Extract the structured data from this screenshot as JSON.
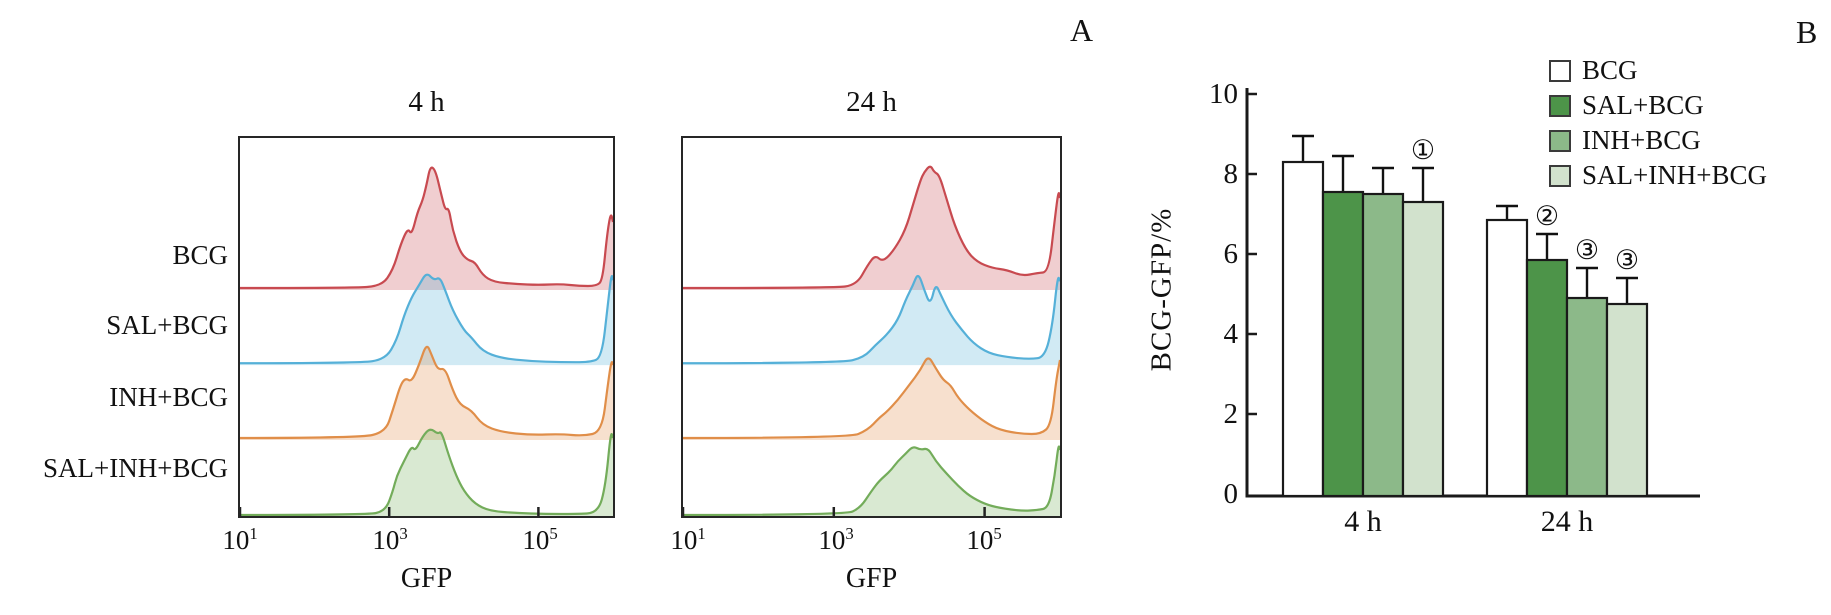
{
  "panel_labels": {
    "a": "A",
    "b": "B"
  },
  "flow": {
    "xlabel": "GFP",
    "xticks": [
      {
        "mant": "10",
        "exp": "1"
      },
      {
        "mant": "10",
        "exp": "3"
      },
      {
        "mant": "10",
        "exp": "5"
      }
    ],
    "row_labels": [
      "BCG",
      "SAL+BCG",
      "INH+BCG",
      "SAL+INH+BCG"
    ]
  },
  "chart_data": [
    {
      "type": "area",
      "title": "4 h",
      "xlabel": "GFP",
      "x_scale": "log10",
      "x_range_log10": [
        1,
        6
      ],
      "x_tick_values": [
        10,
        1000,
        100000
      ],
      "note": "stacked flow-cytometry ridgeline; points are [log10(GFP), relative height px per 75px row]",
      "series": [
        {
          "name": "BCG",
          "stroke": "#c84a50",
          "points": [
            [
              1,
              2
            ],
            [
              2.5,
              2
            ],
            [
              2.9,
              4
            ],
            [
              3.05,
              20
            ],
            [
              3.15,
              45
            ],
            [
              3.25,
              62
            ],
            [
              3.3,
              55
            ],
            [
              3.38,
              78
            ],
            [
              3.45,
              90
            ],
            [
              3.5,
              105
            ],
            [
              3.55,
              124
            ],
            [
              3.62,
              120
            ],
            [
              3.7,
              95
            ],
            [
              3.75,
              80
            ],
            [
              3.8,
              82
            ],
            [
              3.85,
              60
            ],
            [
              3.95,
              38
            ],
            [
              4.05,
              30
            ],
            [
              4.15,
              28
            ],
            [
              4.25,
              15
            ],
            [
              4.4,
              8
            ],
            [
              4.7,
              6
            ],
            [
              5.0,
              5
            ],
            [
              5.3,
              6
            ],
            [
              5.55,
              4
            ],
            [
              5.78,
              4
            ],
            [
              5.86,
              10
            ],
            [
              5.92,
              55
            ],
            [
              5.97,
              78
            ],
            [
              6,
              68
            ]
          ]
        },
        {
          "name": "SAL+BCG",
          "stroke": "#55b0d8",
          "points": [
            [
              1,
              2
            ],
            [
              2.6,
              2
            ],
            [
              2.95,
              6
            ],
            [
              3.1,
              25
            ],
            [
              3.2,
              50
            ],
            [
              3.3,
              68
            ],
            [
              3.4,
              80
            ],
            [
              3.5,
              93
            ],
            [
              3.6,
              85
            ],
            [
              3.68,
              88
            ],
            [
              3.75,
              75
            ],
            [
              3.85,
              55
            ],
            [
              4.0,
              35
            ],
            [
              4.1,
              28
            ],
            [
              4.25,
              14
            ],
            [
              4.5,
              7
            ],
            [
              4.9,
              4
            ],
            [
              5.3,
              3
            ],
            [
              5.7,
              3
            ],
            [
              5.85,
              8
            ],
            [
              5.93,
              60
            ],
            [
              5.98,
              92
            ],
            [
              6,
              85
            ]
          ]
        },
        {
          "name": "INH+BCG",
          "stroke": "#e08e49",
          "points": [
            [
              1,
              2
            ],
            [
              2.6,
              2
            ],
            [
              2.95,
              8
            ],
            [
              3.05,
              30
            ],
            [
              3.15,
              55
            ],
            [
              3.22,
              62
            ],
            [
              3.3,
              58
            ],
            [
              3.4,
              75
            ],
            [
              3.5,
              97
            ],
            [
              3.57,
              85
            ],
            [
              3.65,
              70
            ],
            [
              3.75,
              72
            ],
            [
              3.85,
              50
            ],
            [
              3.95,
              35
            ],
            [
              4.1,
              30
            ],
            [
              4.25,
              15
            ],
            [
              4.5,
              8
            ],
            [
              4.9,
              5
            ],
            [
              5.3,
              6
            ],
            [
              5.6,
              4
            ],
            [
              5.85,
              8
            ],
            [
              5.93,
              55
            ],
            [
              5.98,
              80
            ],
            [
              6,
              75
            ]
          ]
        },
        {
          "name": "SAL+INH+BCG",
          "stroke": "#73ac5a",
          "points": [
            [
              1,
              1
            ],
            [
              2.7,
              1
            ],
            [
              2.95,
              5
            ],
            [
              3.05,
              25
            ],
            [
              3.1,
              40
            ],
            [
              3.2,
              55
            ],
            [
              3.3,
              70
            ],
            [
              3.35,
              65
            ],
            [
              3.45,
              80
            ],
            [
              3.55,
              88
            ],
            [
              3.65,
              82
            ],
            [
              3.7,
              85
            ],
            [
              3.8,
              60
            ],
            [
              3.9,
              40
            ],
            [
              4.0,
              25
            ],
            [
              4.15,
              12
            ],
            [
              4.35,
              5
            ],
            [
              4.7,
              3
            ],
            [
              5.1,
              2
            ],
            [
              5.5,
              2
            ],
            [
              5.8,
              3
            ],
            [
              5.9,
              30
            ],
            [
              5.97,
              85
            ],
            [
              6,
              78
            ]
          ]
        }
      ]
    },
    {
      "type": "area",
      "title": "24 h",
      "xlabel": "GFP",
      "x_scale": "log10",
      "x_range_log10": [
        1,
        6
      ],
      "x_tick_values": [
        10,
        1000,
        100000
      ],
      "series": [
        {
          "name": "BCG",
          "stroke": "#c84a50",
          "points": [
            [
              1,
              2
            ],
            [
              3.0,
              2
            ],
            [
              3.3,
              5
            ],
            [
              3.45,
              25
            ],
            [
              3.55,
              35
            ],
            [
              3.65,
              28
            ],
            [
              3.8,
              40
            ],
            [
              3.95,
              60
            ],
            [
              4.05,
              85
            ],
            [
              4.15,
              110
            ],
            [
              4.2,
              118
            ],
            [
              4.28,
              125
            ],
            [
              4.33,
              118
            ],
            [
              4.4,
              115
            ],
            [
              4.5,
              90
            ],
            [
              4.6,
              65
            ],
            [
              4.75,
              40
            ],
            [
              4.9,
              28
            ],
            [
              5.1,
              22
            ],
            [
              5.3,
              20
            ],
            [
              5.5,
              14
            ],
            [
              5.7,
              17
            ],
            [
              5.85,
              18
            ],
            [
              5.93,
              70
            ],
            [
              5.98,
              100
            ],
            [
              6,
              92
            ]
          ]
        },
        {
          "name": "SAL+BCG",
          "stroke": "#55b0d8",
          "points": [
            [
              1,
              2
            ],
            [
              3.1,
              2
            ],
            [
              3.4,
              8
            ],
            [
              3.55,
              20
            ],
            [
              3.7,
              30
            ],
            [
              3.85,
              45
            ],
            [
              3.95,
              65
            ],
            [
              4.05,
              80
            ],
            [
              4.12,
              93
            ],
            [
              4.2,
              75
            ],
            [
              4.28,
              60
            ],
            [
              4.35,
              82
            ],
            [
              4.42,
              70
            ],
            [
              4.55,
              50
            ],
            [
              4.7,
              35
            ],
            [
              4.85,
              22
            ],
            [
              5.05,
              12
            ],
            [
              5.3,
              8
            ],
            [
              5.6,
              6
            ],
            [
              5.8,
              8
            ],
            [
              5.9,
              40
            ],
            [
              5.97,
              90
            ],
            [
              6,
              84
            ]
          ]
        },
        {
          "name": "INH+BCG",
          "stroke": "#e08e49",
          "points": [
            [
              1,
              2
            ],
            [
              3.2,
              2
            ],
            [
              3.45,
              10
            ],
            [
              3.6,
              22
            ],
            [
              3.7,
              28
            ],
            [
              3.85,
              40
            ],
            [
              4.0,
              55
            ],
            [
              4.15,
              70
            ],
            [
              4.25,
              85
            ],
            [
              4.35,
              72
            ],
            [
              4.45,
              60
            ],
            [
              4.55,
              55
            ],
            [
              4.65,
              42
            ],
            [
              4.8,
              30
            ],
            [
              5.0,
              18
            ],
            [
              5.2,
              10
            ],
            [
              5.5,
              6
            ],
            [
              5.75,
              6
            ],
            [
              5.88,
              15
            ],
            [
              5.95,
              60
            ],
            [
              6,
              80
            ]
          ]
        },
        {
          "name": "SAL+INH+BCG",
          "stroke": "#73ac5a",
          "points": [
            [
              1,
              1
            ],
            [
              3.15,
              1
            ],
            [
              3.35,
              8
            ],
            [
              3.5,
              25
            ],
            [
              3.6,
              35
            ],
            [
              3.75,
              45
            ],
            [
              3.85,
              55
            ],
            [
              3.95,
              62
            ],
            [
              4.05,
              70
            ],
            [
              4.15,
              66
            ],
            [
              4.25,
              68
            ],
            [
              4.35,
              55
            ],
            [
              4.5,
              42
            ],
            [
              4.65,
              30
            ],
            [
              4.8,
              20
            ],
            [
              5.0,
              12
            ],
            [
              5.2,
              8
            ],
            [
              5.5,
              5
            ],
            [
              5.7,
              6
            ],
            [
              5.85,
              8
            ],
            [
              5.93,
              40
            ],
            [
              5.98,
              72
            ],
            [
              6,
              66
            ]
          ]
        }
      ]
    },
    {
      "type": "bar",
      "title": "",
      "ylabel": "BCG-GFP/%",
      "ylim": [
        0,
        10
      ],
      "yticks": [
        0,
        2,
        4,
        6,
        8,
        10
      ],
      "categories": [
        "4 h",
        "24 h"
      ],
      "legend_position": "upper right",
      "series": [
        {
          "name": "BCG",
          "fill": "#ffffff",
          "values": [
            8.3,
            6.85
          ],
          "errors": [
            0.65,
            0.35
          ]
        },
        {
          "name": "SAL+BCG",
          "fill": "#4d9449",
          "values": [
            7.55,
            5.85
          ],
          "errors": [
            0.9,
            0.65
          ]
        },
        {
          "name": "INH+BCG",
          "fill": "#8cb989",
          "values": [
            7.5,
            4.9
          ],
          "errors": [
            0.65,
            0.75
          ]
        },
        {
          "name": "SAL+INH+BCG",
          "fill": "#d2e2cd",
          "values": [
            7.3,
            4.75
          ],
          "errors": [
            0.85,
            0.65
          ]
        }
      ],
      "annotations": [
        {
          "label": "①",
          "category_index": 0,
          "series_index": 3
        },
        {
          "label": "②",
          "category_index": 1,
          "series_index": 1
        },
        {
          "label": "③",
          "category_index": 1,
          "series_index": 2
        },
        {
          "label": "③",
          "category_index": 1,
          "series_index": 3
        }
      ]
    }
  ]
}
